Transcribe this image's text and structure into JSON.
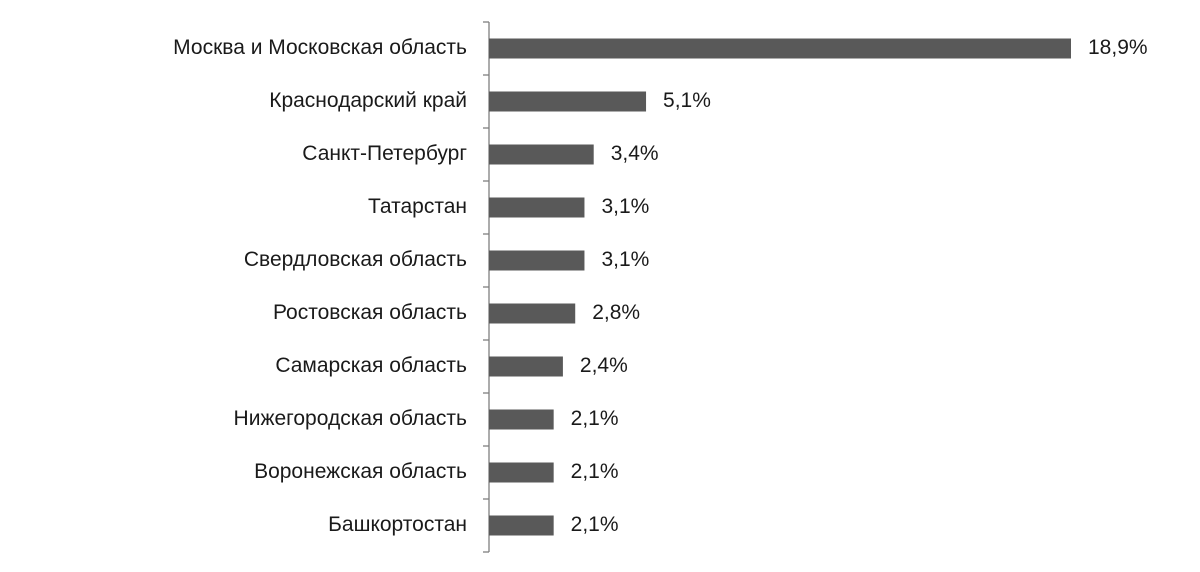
{
  "chart_data": {
    "type": "barh",
    "categories": [
      "Москва и Московская область",
      "Краснодарский край",
      "Санкт-Петербург",
      "Татарстан",
      "Свердловская область",
      "Ростовская область",
      "Самарская область",
      "Нижегородская область",
      "Воронежская область",
      "Башкортостан"
    ],
    "values": [
      18.9,
      5.1,
      3.4,
      3.1,
      3.1,
      2.8,
      2.4,
      2.1,
      2.1,
      2.1
    ],
    "value_labels": [
      "18,9%",
      "5,1%",
      "3,4%",
      "3,1%",
      "3,1%",
      "2,8%",
      "2,4%",
      "2,1%",
      "2,1%",
      "2,1%"
    ],
    "color": "#595959"
  }
}
